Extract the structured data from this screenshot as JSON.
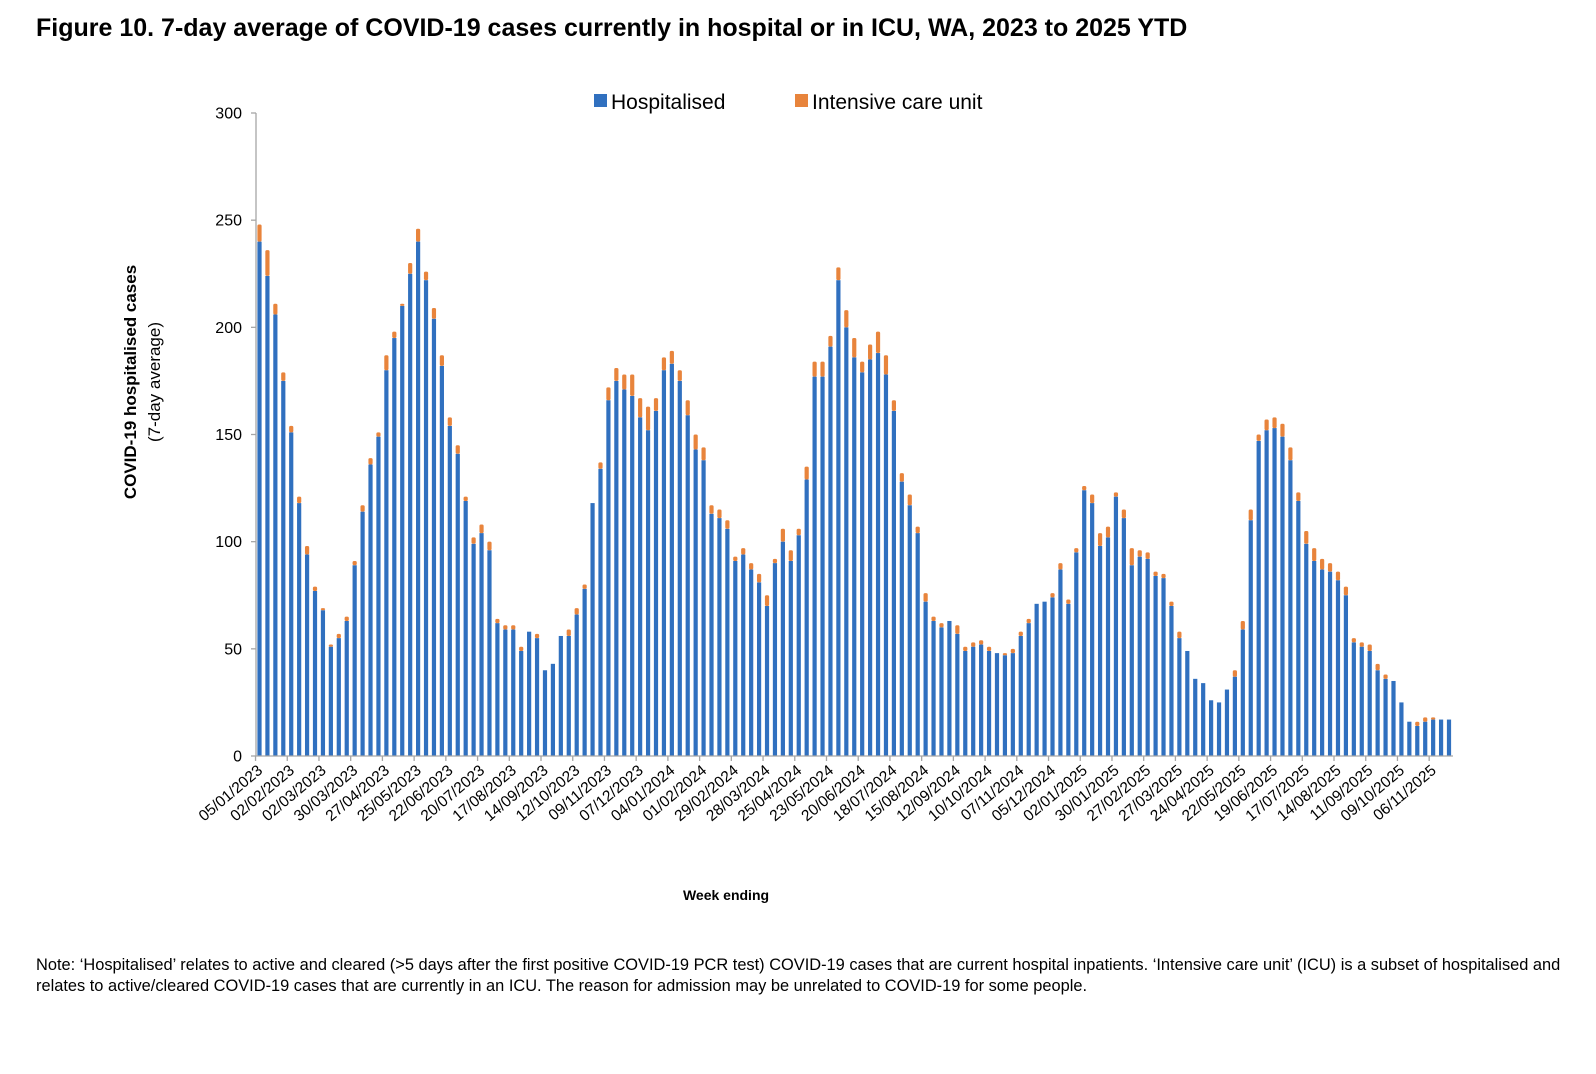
{
  "figure": {
    "title": "Figure 10. 7-day average of COVID-19 cases currently in hospital or in ICU, WA, 2023 to 2025 YTD",
    "note": "Note: ‘Hospitalised’ relates to active and cleared (>5 days after the first positive COVID-19 PCR test) COVID-19 cases that are current hospital inpatients. ‘Intensive care unit’ (ICU) is a subset of hospitalised and relates to active/cleared COVID-19 cases that are currently in an ICU. The reason for admission may be unrelated to COVID-19 for some people."
  },
  "chart_data": {
    "type": "bar",
    "stacked": true,
    "title": "Figure 10. 7-day average of COVID-19 cases currently in hospital or in ICU, WA, 2023 to 2025 YTD",
    "xlabel": "Week ending",
    "ylabel": "COVID-19 hospitalised cases",
    "ylabel_sub": "(7-day average)",
    "ylim": [
      0,
      300
    ],
    "yticks": [
      0,
      50,
      100,
      150,
      200,
      250,
      300
    ],
    "grid": false,
    "legend_position": "top-center",
    "first_week": "05/01/2023",
    "label_every_n_weeks": 4,
    "xtick_labels": [
      "05/01/2023",
      "02/02/2023",
      "02/03/2023",
      "30/03/2023",
      "27/04/2023",
      "25/05/2023",
      "22/06/2023",
      "20/07/2023",
      "17/08/2023",
      "14/09/2023",
      "12/10/2023",
      "09/11/2023",
      "07/12/2023",
      "04/01/2024",
      "01/02/2024",
      "29/02/2024",
      "28/03/2024",
      "25/04/2024",
      "23/05/2024",
      "20/06/2024",
      "18/07/2024",
      "15/08/2024",
      "12/09/2024",
      "10/10/2024",
      "07/11/2024",
      "05/12/2024",
      "02/01/2025",
      "30/01/2025",
      "27/02/2025",
      "27/03/2025",
      "24/04/2025",
      "22/05/2025",
      "19/06/2025",
      "17/07/2025",
      "14/08/2025",
      "11/09/2025",
      "09/10/2025",
      "06/11/2025"
    ],
    "series": [
      {
        "name": "Hospitalised",
        "color": "#3070BF",
        "values": [
          240,
          224,
          206,
          175,
          151,
          118,
          94,
          77,
          68,
          51,
          55,
          63,
          89,
          114,
          136,
          149,
          180,
          195,
          210,
          225,
          240,
          222,
          204,
          182,
          154,
          141,
          119,
          99,
          104,
          96,
          62,
          59,
          59,
          49,
          58,
          55,
          40,
          43,
          56,
          56,
          66,
          78,
          118,
          134,
          166,
          175,
          171,
          168,
          158,
          152,
          161,
          180,
          183,
          175,
          159,
          143,
          138,
          113,
          111,
          106,
          91,
          94,
          87,
          81,
          70,
          90,
          100,
          91,
          103,
          129,
          177,
          177,
          191,
          222,
          200,
          186,
          179,
          185,
          188,
          178,
          161,
          128,
          117,
          104,
          72,
          63,
          60,
          63,
          57,
          49,
          51,
          52,
          49,
          48,
          47,
          48,
          56,
          62,
          71,
          72,
          74,
          87,
          71,
          95,
          124,
          118,
          98,
          102,
          121,
          111,
          89,
          93,
          92,
          84,
          83,
          70,
          55,
          49,
          36,
          34,
          26,
          25,
          31,
          37,
          59,
          110,
          147,
          152,
          153,
          149,
          138,
          119,
          99,
          91,
          87,
          86,
          82,
          75,
          53,
          51,
          49,
          40,
          36,
          35,
          25,
          16,
          14,
          16,
          17,
          17,
          17
        ]
      },
      {
        "name": "Intensive care unit",
        "color": "#E8843C",
        "values": [
          8,
          12,
          5,
          4,
          3,
          3,
          4,
          2,
          1,
          1,
          2,
          2,
          2,
          3,
          3,
          2,
          7,
          3,
          1,
          5,
          6,
          4,
          5,
          5,
          4,
          4,
          2,
          3,
          4,
          4,
          2,
          2,
          2,
          2,
          0,
          2,
          0,
          0,
          0,
          3,
          3,
          2,
          0,
          3,
          6,
          6,
          7,
          10,
          9,
          11,
          6,
          6,
          6,
          5,
          7,
          7,
          6,
          4,
          4,
          4,
          2,
          3,
          3,
          4,
          5,
          2,
          6,
          5,
          3,
          6,
          7,
          7,
          5,
          6,
          8,
          9,
          5,
          7,
          10,
          9,
          5,
          4,
          5,
          3,
          4,
          2,
          2,
          0,
          4,
          2,
          2,
          2,
          2,
          0,
          1,
          2,
          2,
          2,
          0,
          0,
          2,
          3,
          2,
          2,
          2,
          4,
          6,
          5,
          2,
          4,
          8,
          3,
          3,
          2,
          2,
          2,
          3,
          0,
          0,
          0,
          0,
          0,
          0,
          3,
          4,
          5,
          3,
          5,
          5,
          6,
          6,
          4,
          6,
          6,
          5,
          4,
          4,
          4,
          2,
          2,
          3,
          3,
          2,
          0,
          0,
          0,
          2,
          2,
          1,
          0,
          0
        ]
      }
    ]
  }
}
